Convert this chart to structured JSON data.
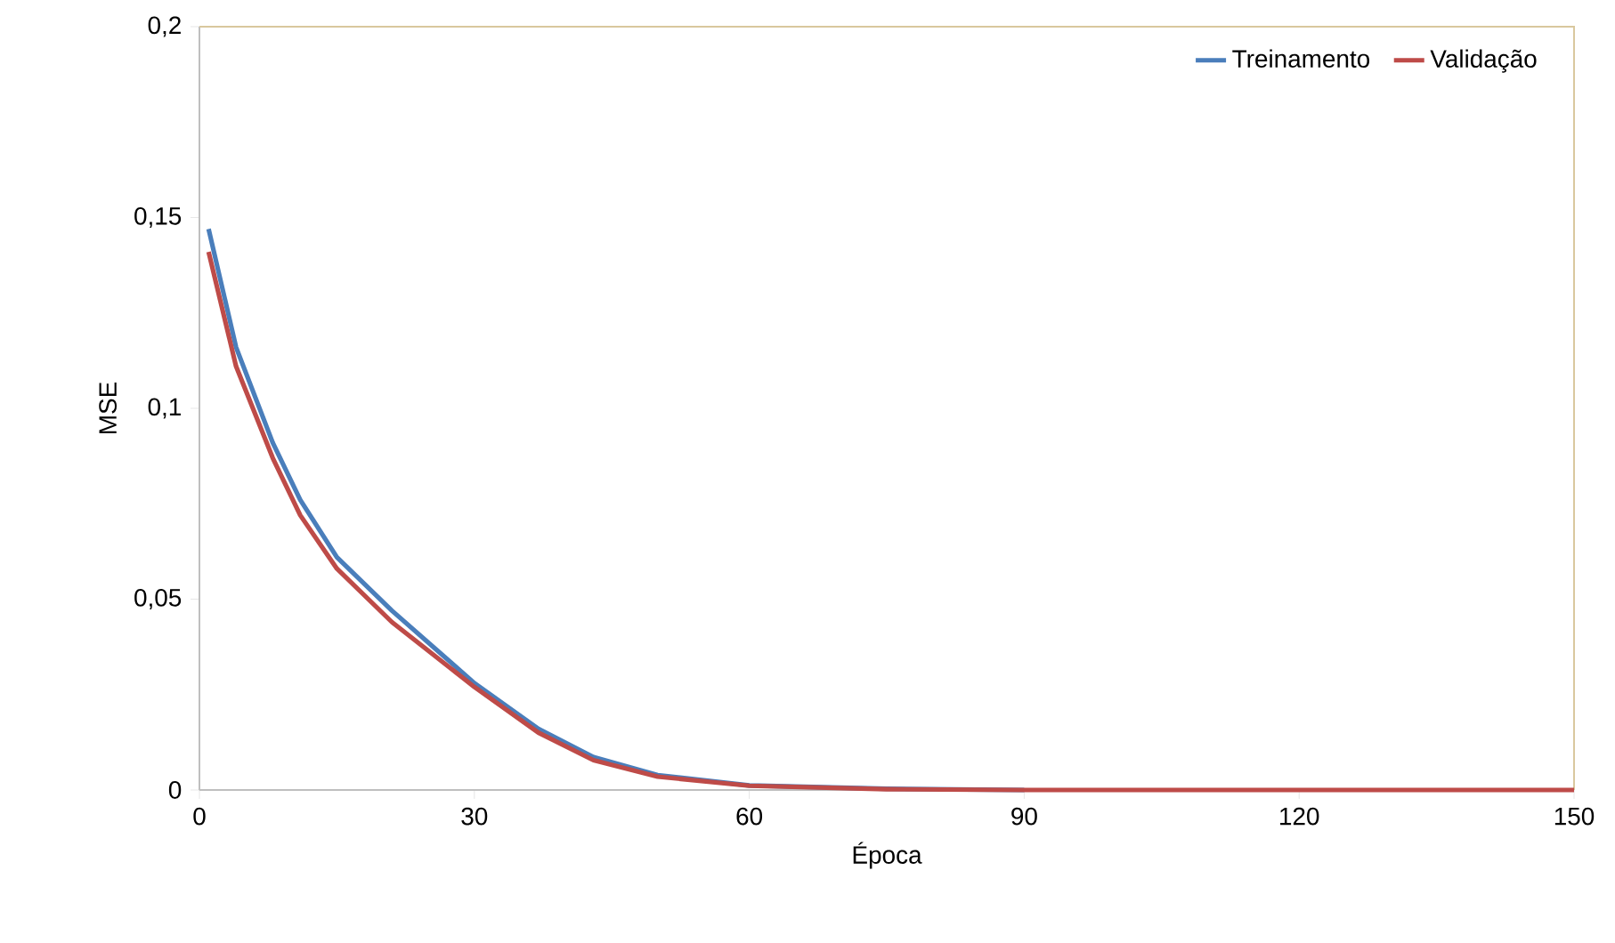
{
  "chart_data": {
    "type": "line",
    "xlabel": "Época",
    "ylabel": "MSE",
    "xlim": [
      0,
      150
    ],
    "xticks": [
      0,
      30,
      60,
      90,
      120,
      150
    ],
    "ylim": [
      0,
      0.2
    ],
    "yticks": [
      {
        "value": 0,
        "label": "0"
      },
      {
        "value": 0.05,
        "label": "0,05"
      },
      {
        "value": 0.1,
        "label": "0,1"
      },
      {
        "value": 0.15,
        "label": "0,15"
      },
      {
        "value": 0.2,
        "label": "0,2"
      }
    ],
    "x": [
      1,
      4,
      8,
      11,
      15,
      21,
      30,
      37,
      43,
      50,
      60,
      75,
      90,
      120,
      150
    ],
    "series": [
      {
        "name": "Treinamento",
        "color": "#4a7ebb",
        "values": [
          0.147,
          0.116,
          0.091,
          0.076,
          0.061,
          0.047,
          0.028,
          0.016,
          0.0086,
          0.0039,
          0.0012,
          0.0003,
          0,
          null,
          null
        ]
      },
      {
        "name": "Validação",
        "color": "#be4b48",
        "values": [
          0.141,
          0.111,
          0.087,
          0.072,
          0.058,
          0.044,
          0.027,
          0.015,
          0.0078,
          0.0035,
          0.0011,
          0.0002,
          0,
          0,
          0
        ]
      }
    ],
    "legend": "top right",
    "grid": false,
    "marker": "none",
    "line_style": "solid"
  }
}
